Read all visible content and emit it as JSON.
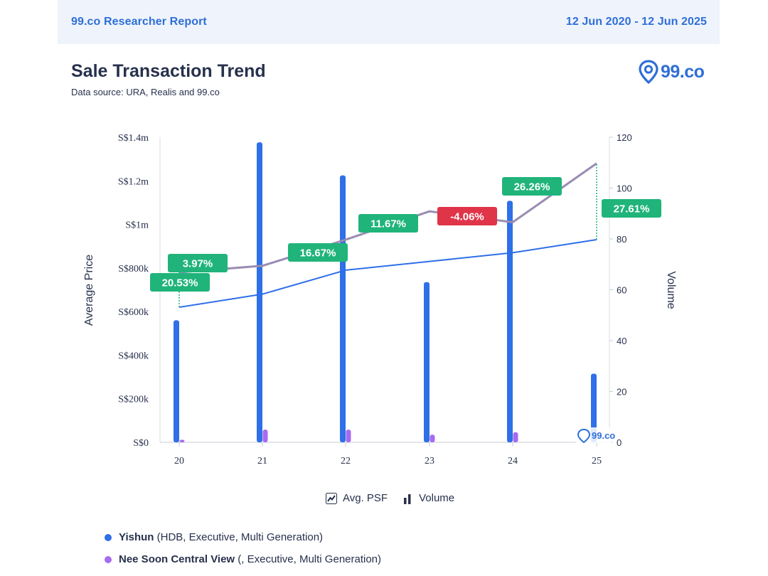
{
  "header": {
    "report_title": "99.co Researcher Report",
    "date_range": "12 Jun 2020 - 12 Jun 2025"
  },
  "page": {
    "title": "Sale Transaction Trend",
    "source": "Data source: URA, Realis and 99.co"
  },
  "brand": {
    "logo_text": "99.co",
    "watermark_text": "99.co",
    "color": "#2f6fd6"
  },
  "legend_top": [
    {
      "icon": "line-chart-icon",
      "label": "Avg. PSF"
    },
    {
      "icon": "bar-chart-icon",
      "label": "Volume"
    }
  ],
  "legend_bottom": [
    {
      "name": "Yishun",
      "detail": " (HDB, Executive, Multi Generation)",
      "color": "#2f6fe8"
    },
    {
      "name": "Nee Soon Central View",
      "detail": " (, Executive, Multi Generation)",
      "color": "#a66bf0"
    }
  ],
  "chart_data": {
    "type": "bar",
    "categories": [
      "20",
      "21",
      "22",
      "23",
      "24",
      "25"
    ],
    "ylabel": "Average Price",
    "y2label": "Volume",
    "ylim": [
      0,
      1400000
    ],
    "y2lim": [
      0,
      120
    ],
    "y_ticks": [
      "S$0",
      "S$200k",
      "S$400k",
      "S$600k",
      "S$800k",
      "S$1m",
      "S$1.2m",
      "S$1.4m"
    ],
    "y2_ticks": [
      "0",
      "20",
      "40",
      "60",
      "80",
      "100",
      "120"
    ],
    "series": [
      {
        "name": "Yishun",
        "kind": "volume",
        "color": "#2f6fe8",
        "values": [
          48,
          118,
          105,
          63,
          95,
          27
        ]
      },
      {
        "name": "Nee Soon Central View",
        "kind": "volume",
        "color": "#a66bf0",
        "values": [
          1,
          5,
          5,
          3,
          4,
          0
        ]
      },
      {
        "name": "Yishun",
        "kind": "avg_price",
        "color": "#2f6fe8",
        "values": [
          620000,
          680000,
          790000,
          830000,
          870000,
          930000
        ]
      },
      {
        "name": "Nee Soon Central View",
        "kind": "avg_price",
        "color": "#8a8fb5",
        "values": [
          780000,
          810000,
          930000,
          1060000,
          1010000,
          1280000
        ]
      }
    ],
    "annotations": [
      {
        "text": "20.53%",
        "color": "#20b47a"
      },
      {
        "text": "3.97%",
        "color": "#20b47a"
      },
      {
        "text": "16.67%",
        "color": "#20b47a"
      },
      {
        "text": "11.67%",
        "color": "#20b47a"
      },
      {
        "text": "-4.06%",
        "color": "#e03448"
      },
      {
        "text": "26.26%",
        "color": "#20b47a"
      },
      {
        "text": "27.61%",
        "color": "#20b47a"
      }
    ]
  }
}
